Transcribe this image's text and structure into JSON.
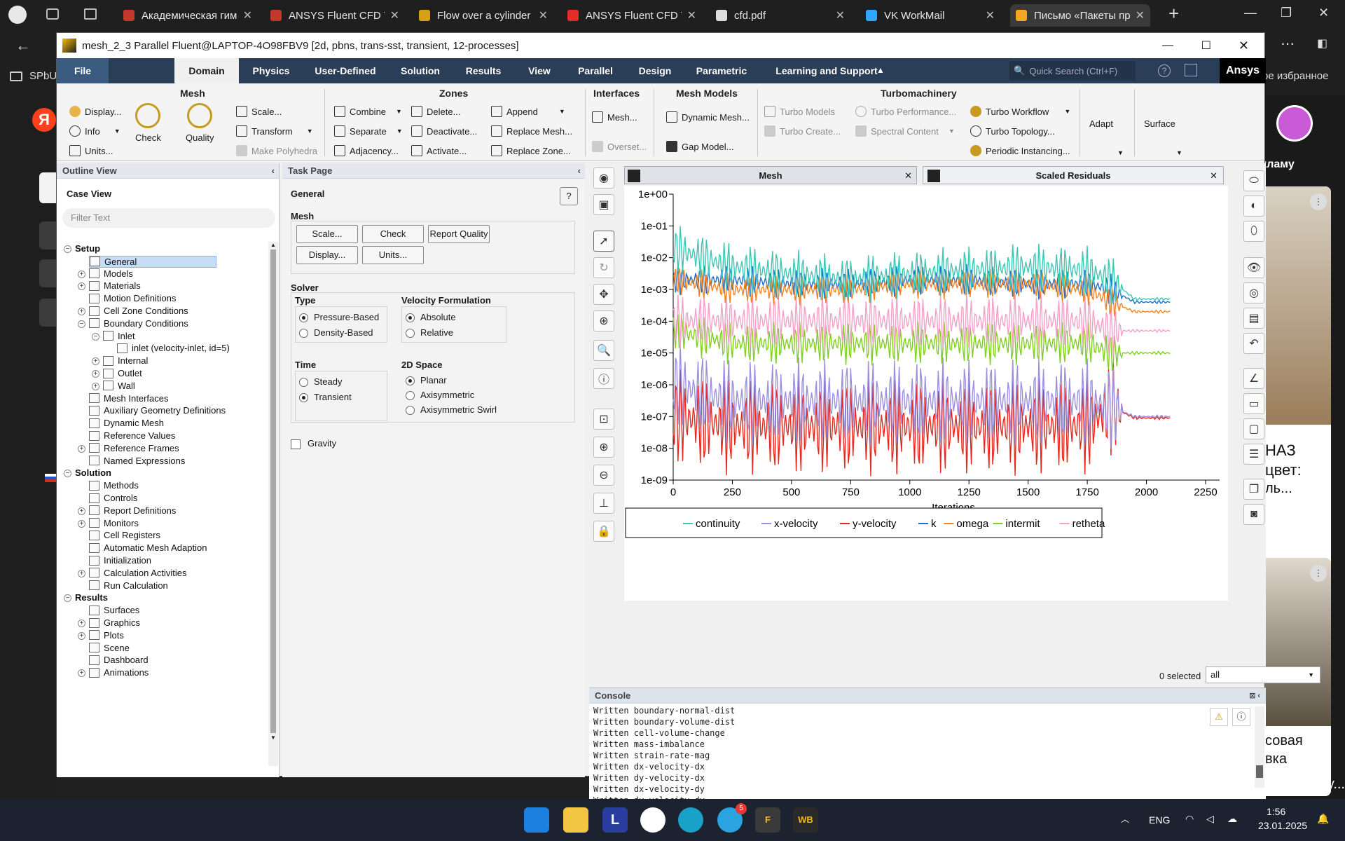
{
  "browser": {
    "tabs": [
      {
        "label": "Академическая гим",
        "color": "#c0392b"
      },
      {
        "label": "ANSYS Fluent CFD Tu",
        "color": "#c0392b"
      },
      {
        "label": "Flow over a cylinder",
        "color": "#d4a017"
      },
      {
        "label": "ANSYS Fluent CFD Tu",
        "color": "#e52d27"
      },
      {
        "label": "cfd.pdf",
        "color": "#dddddd"
      },
      {
        "label": "VK WorkMail",
        "color": "#2ea7ff"
      },
      {
        "label": "Письмо «Пакеты пр",
        "color": "#f5a623"
      }
    ],
    "bookmark_left": "SPbU",
    "bookmark_right": "ое избранное",
    "right_snippets": [
      "кламу",
      "НАЗ",
      "цвет:",
      "ль...",
      "совая",
      "вка",
      "на молнии Bababuy..."
    ],
    "yandex_letter": "Я"
  },
  "fluent": {
    "title": "mesh_2_3 Parallel Fluent@LAPTOP-4O98FBV9  [2d, pbns, trans-sst, transient, 12-processes]",
    "menu": [
      "File",
      "Domain",
      "Physics",
      "User-Defined",
      "Solution",
      "Results",
      "View",
      "Parallel",
      "Design",
      "Parametric",
      "Learning and Support"
    ],
    "active_menu": "Domain",
    "search_placeholder": "Quick Search (Ctrl+F)",
    "brand": "Ansys",
    "ribbon": {
      "mesh_title": "Mesh",
      "mesh_items": [
        "Display...",
        "Info",
        "Units...",
        "Check",
        "Quality",
        "Scale...",
        "Transform",
        "Make Polyhedra"
      ],
      "zones_title": "Zones",
      "zones_items": [
        "Combine",
        "Separate",
        "Adjacency...",
        "Delete...",
        "Deactivate...",
        "Activate...",
        "Append",
        "Replace Mesh...",
        "Replace Zone..."
      ],
      "interfaces_title": "Interfaces",
      "interfaces_items": [
        "Mesh...",
        "Overset..."
      ],
      "meshmodels_title": "Mesh Models",
      "meshmodels_items": [
        "Dynamic Mesh...",
        "Gap Model..."
      ],
      "turbo_title": "Turbomachinery",
      "turbo_items": [
        "Turbo Models",
        "Turbo Create...",
        "Turbo Performance...",
        "Spectral Content",
        "Turbo Workflow",
        "Turbo Topology...",
        "Periodic Instancing..."
      ],
      "adapt": "Adapt",
      "surface": "Surface"
    },
    "outline": {
      "title": "Outline View",
      "case_view": "Case View",
      "filter_placeholder": "Filter Text",
      "setup": "Setup",
      "setup_items": [
        "General",
        "Models",
        "Materials",
        "Motion Definitions",
        "Cell Zone Conditions",
        "Boundary Conditions",
        "Inlet",
        "inlet (velocity-inlet, id=5)",
        "Internal",
        "Outlet",
        "Wall",
        "Mesh Interfaces",
        "Auxiliary Geometry Definitions",
        "Dynamic Mesh",
        "Reference Values",
        "Reference Frames",
        "Named Expressions"
      ],
      "solution": "Solution",
      "solution_items": [
        "Methods",
        "Controls",
        "Report Definitions",
        "Monitors",
        "Cell Registers",
        "Automatic Mesh Adaption",
        "Initialization",
        "Calculation Activities",
        "Run Calculation"
      ],
      "results": "Results",
      "results_items": [
        "Surfaces",
        "Graphics",
        "Plots",
        "Scene",
        "Dashboard",
        "Animations"
      ]
    },
    "task": {
      "title": "Task Page",
      "section": "General",
      "mesh_label": "Mesh",
      "buttons": [
        "Scale...",
        "Check",
        "Report Quality",
        "Display...",
        "Units..."
      ],
      "solver_label": "Solver",
      "type_label": "Type",
      "type_options": [
        "Pressure-Based",
        "Density-Based"
      ],
      "type_selected": "Pressure-Based",
      "velocity_label": "Velocity Formulation",
      "velocity_options": [
        "Absolute",
        "Relative"
      ],
      "time_label": "Time",
      "time_options": [
        "Steady",
        "Transient"
      ],
      "space_label": "2D Space",
      "space_options": [
        "Planar",
        "Axisymmetric",
        "Axisymmetric Swirl"
      ],
      "gravity": "Gravity"
    },
    "graphics": {
      "tab_mesh": "Mesh",
      "tab_residuals": "Scaled Residuals",
      "selected_text": "0 selected",
      "selected_value": "all"
    },
    "console": {
      "title": "Console",
      "lines": [
        "Written boundary-normal-dist",
        "Written boundary-volume-dist",
        "Written cell-volume-change",
        "Written mass-imbalance",
        "Written strain-rate-mag",
        "Written dx-velocity-dx",
        "Written dy-velocity-dx",
        "Written dx-velocity-dy",
        "Written dy-velocity-dy"
      ]
    }
  },
  "taskbar": {
    "lang": "ENG",
    "time": "1:56",
    "date": "23.01.2025",
    "telegram_badge": "5",
    "wb": "WB",
    "l": "L",
    "f": "F"
  },
  "chart_data": {
    "type": "line",
    "title": "",
    "xlabel": "Iterations",
    "ylabel": "",
    "yscale": "log",
    "xlim": [
      0,
      2250
    ],
    "ylim": [
      1e-09,
      1
    ],
    "xticks": [
      "0",
      "250",
      "500",
      "750",
      "1000",
      "1250",
      "1500",
      "1750",
      "2000",
      "2250"
    ],
    "yticks": [
      "1e+00",
      "1e-01",
      "1e-02",
      "1e-03",
      "1e-04",
      "1e-05",
      "1e-06",
      "1e-07",
      "1e-08",
      "1e-09"
    ],
    "legend_position": "bottom",
    "series": [
      {
        "name": "continuity",
        "color": "#3cc7b4",
        "x": [
          0,
          250,
          500,
          750,
          1000,
          1250,
          1500,
          1750,
          1850,
          1950,
          2100
        ],
        "y": [
          0.02,
          0.005,
          0.003,
          0.002,
          0.003,
          0.004,
          0.005,
          0.004,
          0.002,
          0.0005,
          0.0005
        ]
      },
      {
        "name": "x-velocity",
        "color": "#9b8fe0",
        "x": [
          0,
          250,
          500,
          750,
          1000,
          1250,
          1500,
          1750,
          1850,
          1950,
          2100
        ],
        "y": [
          1e-06,
          3e-07,
          3e-07,
          3e-07,
          3e-07,
          3e-07,
          3e-07,
          3e-07,
          2e-07,
          1e-07,
          1e-07
        ]
      },
      {
        "name": "y-velocity",
        "color": "#e8281e",
        "x": [
          0,
          250,
          500,
          750,
          1000,
          1250,
          1500,
          1750,
          1850,
          1950,
          2100
        ],
        "y": [
          1e-07,
          5e-08,
          5e-08,
          5e-08,
          5e-08,
          5e-08,
          5e-08,
          5e-08,
          2e-07,
          9e-08,
          9e-08
        ]
      },
      {
        "name": "k",
        "color": "#1a6fd0",
        "x": [
          0,
          250,
          500,
          750,
          1000,
          1250,
          1500,
          1750,
          1850,
          1950,
          2100
        ],
        "y": [
          0.002,
          0.002,
          0.0015,
          0.0015,
          0.002,
          0.002,
          0.0015,
          0.0015,
          0.001,
          0.0004,
          0.0004
        ]
      },
      {
        "name": "omega",
        "color": "#f58220",
        "x": [
          0,
          250,
          500,
          750,
          1000,
          1250,
          1500,
          1750,
          1850,
          1950,
          2100
        ],
        "y": [
          0.002,
          0.001,
          0.001,
          0.001,
          0.0015,
          0.0015,
          0.0015,
          0.001,
          0.0004,
          0.0002,
          0.0002
        ]
      },
      {
        "name": "intermit",
        "color": "#7fcf1e",
        "x": [
          0,
          250,
          500,
          750,
          1000,
          1250,
          1500,
          1750,
          1850,
          1950,
          2100
        ],
        "y": [
          5e-05,
          2e-05,
          2e-05,
          2e-05,
          2e-05,
          2e-05,
          2e-05,
          2e-05,
          1e-05,
          1e-05,
          1e-05
        ]
      },
      {
        "name": "retheta",
        "color": "#f4a0c8",
        "x": [
          0,
          250,
          500,
          750,
          1000,
          1250,
          1500,
          1750,
          1850,
          1950,
          2100
        ],
        "y": [
          0.0001,
          0.0001,
          0.0001,
          0.0001,
          0.0001,
          0.0001,
          0.0001,
          0.0001,
          5e-05,
          5e-05,
          5e-05
        ]
      }
    ]
  }
}
